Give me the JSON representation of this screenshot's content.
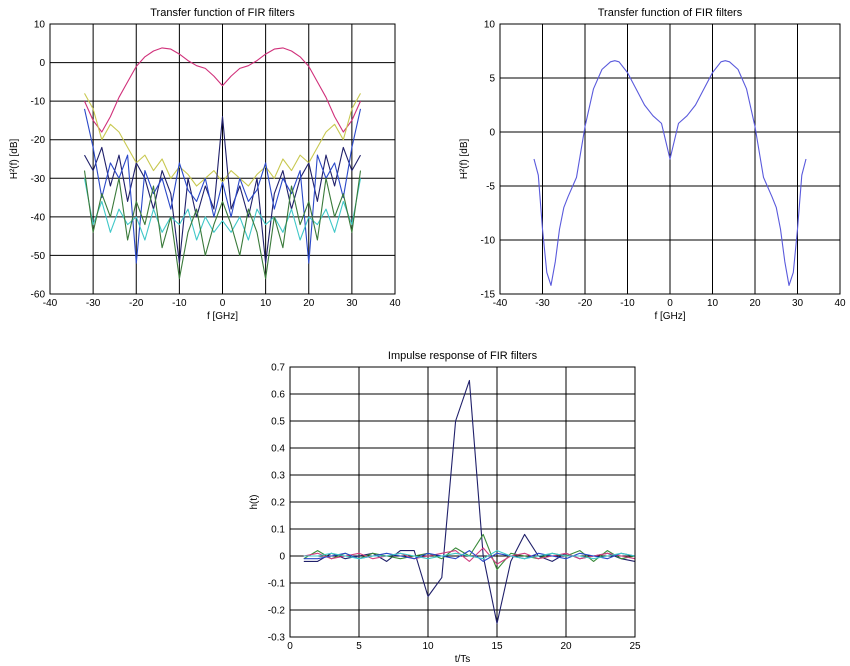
{
  "chart_data": [
    {
      "type": "line",
      "title": "Transfer function of FIR filters",
      "xlabel": "f [GHz]",
      "ylabel": "H²(f) [dB]",
      "xlim": [
        -40,
        40
      ],
      "ylim": [
        -60,
        10
      ],
      "xticks": [
        -40,
        -30,
        -20,
        -10,
        0,
        10,
        20,
        30,
        40
      ],
      "yticks": [
        -60,
        -50,
        -40,
        -30,
        -20,
        -10,
        0,
        10
      ],
      "grid": true,
      "series": [
        {
          "color": "#d0307a",
          "x": [
            -32,
            -30,
            -28,
            -26,
            -24,
            -22,
            -20,
            -18,
            -16,
            -14,
            -12,
            -10,
            -8,
            -6,
            -4,
            -2,
            0,
            2,
            4,
            6,
            8,
            10,
            12,
            14,
            16,
            18,
            20,
            22,
            24,
            26,
            28,
            30,
            32
          ],
          "values": [
            -10,
            -15,
            -18,
            -14,
            -9,
            -5,
            -1,
            1.5,
            3,
            3.8,
            3.5,
            2.2,
            0.5,
            -0.8,
            -1.5,
            -3.5,
            -6,
            -3.5,
            -1.5,
            -0.8,
            0.5,
            2.2,
            3.5,
            3.8,
            3,
            1.5,
            -1,
            -5,
            -9,
            -14,
            -18,
            -15,
            -10
          ]
        },
        {
          "color": "#c8c850",
          "x": [
            -32,
            -30,
            -28,
            -26,
            -24,
            -22,
            -20,
            -18,
            -16,
            -14,
            -12,
            -10,
            -8,
            -6,
            -4,
            -2,
            0,
            2,
            4,
            6,
            8,
            10,
            12,
            14,
            16,
            18,
            20,
            22,
            24,
            26,
            28,
            30,
            32
          ],
          "values": [
            -8,
            -12,
            -20,
            -16,
            -18,
            -22,
            -26,
            -24,
            -28,
            -25,
            -30,
            -27,
            -29,
            -32,
            -30,
            -28,
            -31,
            -28,
            -30,
            -32,
            -29,
            -27,
            -30,
            -25,
            -28,
            -24,
            -26,
            -22,
            -18,
            -16,
            -20,
            -12,
            -8
          ]
        },
        {
          "color": "#20206a",
          "x": [
            -32,
            -30,
            -28,
            -26,
            -24,
            -22,
            -20,
            -18,
            -16,
            -14,
            -12,
            -10,
            -8,
            -6,
            -4,
            -2,
            0,
            2,
            4,
            6,
            8,
            10,
            12,
            14,
            16,
            18,
            20,
            22,
            24,
            26,
            28,
            30,
            32
          ],
          "values": [
            -24,
            -28,
            -22,
            -32,
            -24,
            -36,
            -26,
            -30,
            -38,
            -28,
            -34,
            -52,
            -30,
            -40,
            -32,
            -38,
            -14,
            -38,
            -32,
            -40,
            -30,
            -52,
            -34,
            -28,
            -38,
            -30,
            -26,
            -36,
            -24,
            -32,
            -22,
            -28,
            -24
          ]
        },
        {
          "color": "#2a48c8",
          "x": [
            -32,
            -30,
            -28,
            -26,
            -24,
            -22,
            -20,
            -18,
            -16,
            -14,
            -12,
            -10,
            -8,
            -6,
            -4,
            -2,
            0,
            2,
            4,
            6,
            8,
            10,
            12,
            14,
            16,
            18,
            20,
            22,
            24,
            26,
            28,
            30,
            32
          ],
          "values": [
            -12,
            -22,
            -35,
            -26,
            -30,
            -24,
            -52,
            -28,
            -34,
            -30,
            -38,
            -26,
            -33,
            -36,
            -30,
            -40,
            -31,
            -40,
            -30,
            -36,
            -33,
            -26,
            -38,
            -30,
            -34,
            -28,
            -52,
            -24,
            -30,
            -26,
            -35,
            -22,
            -12
          ]
        },
        {
          "color": "#40c8c8",
          "x": [
            -32,
            -30,
            -28,
            -26,
            -24,
            -22,
            -20,
            -18,
            -16,
            -14,
            -12,
            -10,
            -8,
            -6,
            -4,
            -2,
            0,
            2,
            4,
            6,
            8,
            10,
            12,
            14,
            16,
            18,
            20,
            22,
            24,
            26,
            28,
            30,
            32
          ],
          "values": [
            -30,
            -42,
            -36,
            -44,
            -38,
            -42,
            -40,
            -46,
            -38,
            -44,
            -40,
            -42,
            -38,
            -46,
            -40,
            -44,
            -41,
            -44,
            -40,
            -46,
            -38,
            -42,
            -40,
            -44,
            -38,
            -46,
            -40,
            -42,
            -38,
            -44,
            -36,
            -42,
            -30
          ]
        },
        {
          "color": "#3a7a3a",
          "x": [
            -32,
            -30,
            -28,
            -26,
            -24,
            -22,
            -20,
            -18,
            -16,
            -14,
            -12,
            -10,
            -8,
            -6,
            -4,
            -2,
            0,
            2,
            4,
            6,
            8,
            10,
            12,
            14,
            16,
            18,
            20,
            22,
            24,
            26,
            28,
            30,
            32
          ],
          "values": [
            -28,
            -44,
            -34,
            -40,
            -30,
            -46,
            -36,
            -42,
            -32,
            -48,
            -40,
            -56,
            -44,
            -38,
            -50,
            -42,
            -36,
            -42,
            -50,
            -38,
            -44,
            -56,
            -40,
            -48,
            -32,
            -42,
            -36,
            -46,
            -30,
            -40,
            -34,
            -44,
            -28
          ]
        }
      ]
    },
    {
      "type": "line",
      "title": "Transfer function of FIR filters",
      "xlabel": "f [GHz]",
      "ylabel": "H²(f) [dB]",
      "xlim": [
        -40,
        40
      ],
      "ylim": [
        -15,
        10
      ],
      "xticks": [
        -40,
        -30,
        -20,
        -10,
        0,
        10,
        20,
        30,
        40
      ],
      "yticks": [
        -15,
        -10,
        -5,
        0,
        5,
        10
      ],
      "grid": true,
      "series": [
        {
          "color": "#5a5adc",
          "x": [
            -32,
            -31,
            -30,
            -29,
            -28,
            -27,
            -26,
            -25,
            -24,
            -22,
            -20,
            -18,
            -16,
            -14,
            -13,
            -12,
            -10,
            -8,
            -6,
            -4,
            -2,
            0,
            2,
            4,
            6,
            8,
            10,
            12,
            13,
            14,
            16,
            18,
            20,
            22,
            24,
            25,
            26,
            27,
            28,
            29,
            30,
            31,
            32
          ],
          "values": [
            -2.5,
            -4,
            -9,
            -13,
            -14.2,
            -12,
            -9,
            -7,
            -6,
            -4.2,
            0.5,
            4,
            5.8,
            6.5,
            6.6,
            6.5,
            5.5,
            4,
            2.5,
            1.5,
            0.8,
            -2.5,
            0.8,
            1.5,
            2.5,
            4,
            5.5,
            6.5,
            6.6,
            6.5,
            5.8,
            4,
            0.5,
            -4.2,
            -6,
            -7,
            -9,
            -12,
            -14.2,
            -13,
            -9,
            -4,
            -2.5
          ]
        }
      ]
    },
    {
      "type": "line",
      "title": "Impulse response of FIR filters",
      "xlabel": "t/Ts",
      "ylabel": "h(t)",
      "xlim": [
        0,
        25
      ],
      "ylim": [
        -0.3,
        0.7
      ],
      "xticks": [
        0,
        5,
        10,
        15,
        20,
        25
      ],
      "yticks": [
        -0.3,
        -0.2,
        -0.1,
        0,
        0.1,
        0.2,
        0.3,
        0.4,
        0.5,
        0.6,
        0.7
      ],
      "grid": true,
      "series": [
        {
          "color": "#20206a",
          "x": [
            1,
            2,
            3,
            4,
            5,
            6,
            7,
            8,
            9,
            10,
            11,
            12,
            13,
            14,
            15,
            16,
            17,
            18,
            19,
            20,
            21,
            22,
            23,
            24,
            25
          ],
          "values": [
            -0.02,
            -0.02,
            0.01,
            -0.01,
            0.0,
            0.01,
            -0.02,
            0.02,
            0.02,
            -0.15,
            -0.08,
            0.5,
            0.65,
            0.0,
            -0.25,
            -0.02,
            0.08,
            0.0,
            -0.02,
            0.01,
            -0.01,
            0.0,
            0.01,
            -0.01,
            -0.02
          ]
        },
        {
          "color": "#3a8a3a",
          "x": [
            1,
            2,
            3,
            4,
            5,
            6,
            7,
            8,
            9,
            10,
            11,
            12,
            13,
            14,
            15,
            16,
            17,
            18,
            19,
            20,
            21,
            22,
            23,
            24,
            25
          ],
          "values": [
            -0.01,
            0.02,
            -0.01,
            0.01,
            -0.01,
            0.01,
            0.0,
            -0.01,
            0.0,
            0.01,
            -0.01,
            0.03,
            0.0,
            0.08,
            -0.05,
            0.01,
            0.0,
            -0.01,
            0.01,
            0.0,
            0.02,
            -0.02,
            0.02,
            -0.01,
            0.0
          ]
        },
        {
          "color": "#d04080",
          "x": [
            1,
            2,
            3,
            4,
            5,
            6,
            7,
            8,
            9,
            10,
            11,
            12,
            13,
            14,
            15,
            16,
            17,
            18,
            19,
            20,
            21,
            22,
            23,
            24,
            25
          ],
          "values": [
            0.0,
            0.01,
            -0.01,
            0.0,
            0.01,
            -0.01,
            0.0,
            0.01,
            -0.01,
            0.0,
            0.01,
            0.02,
            -0.02,
            0.03,
            -0.03,
            0.0,
            0.01,
            -0.01,
            0.0,
            0.01,
            -0.01,
            0.0,
            0.01,
            0.0,
            -0.01
          ]
        },
        {
          "color": "#2a48c8",
          "x": [
            1,
            2,
            3,
            4,
            5,
            6,
            7,
            8,
            9,
            10,
            11,
            12,
            13,
            14,
            15,
            16,
            17,
            18,
            19,
            20,
            21,
            22,
            23,
            24,
            25
          ],
          "values": [
            -0.01,
            -0.01,
            0.0,
            0.01,
            -0.01,
            0.0,
            0.01,
            0.0,
            -0.01,
            0.01,
            0.0,
            -0.01,
            0.02,
            -0.02,
            0.01,
            0.0,
            -0.01,
            0.01,
            0.0,
            -0.01,
            0.01,
            0.0,
            -0.01,
            0.01,
            0.0
          ]
        },
        {
          "color": "#40c8c8",
          "x": [
            1,
            2,
            3,
            4,
            5,
            6,
            7,
            8,
            9,
            10,
            11,
            12,
            13,
            14,
            15,
            16,
            17,
            18,
            19,
            20,
            21,
            22,
            23,
            24,
            25
          ],
          "values": [
            0.0,
            0.0,
            0.01,
            0.0,
            -0.01,
            0.0,
            0.0,
            0.01,
            0.0,
            -0.01,
            0.0,
            0.01,
            0.0,
            -0.01,
            0.02,
            0.0,
            -0.01,
            0.0,
            0.01,
            0.0,
            0.0,
            -0.01,
            0.0,
            0.01,
            0.0
          ]
        }
      ]
    }
  ]
}
